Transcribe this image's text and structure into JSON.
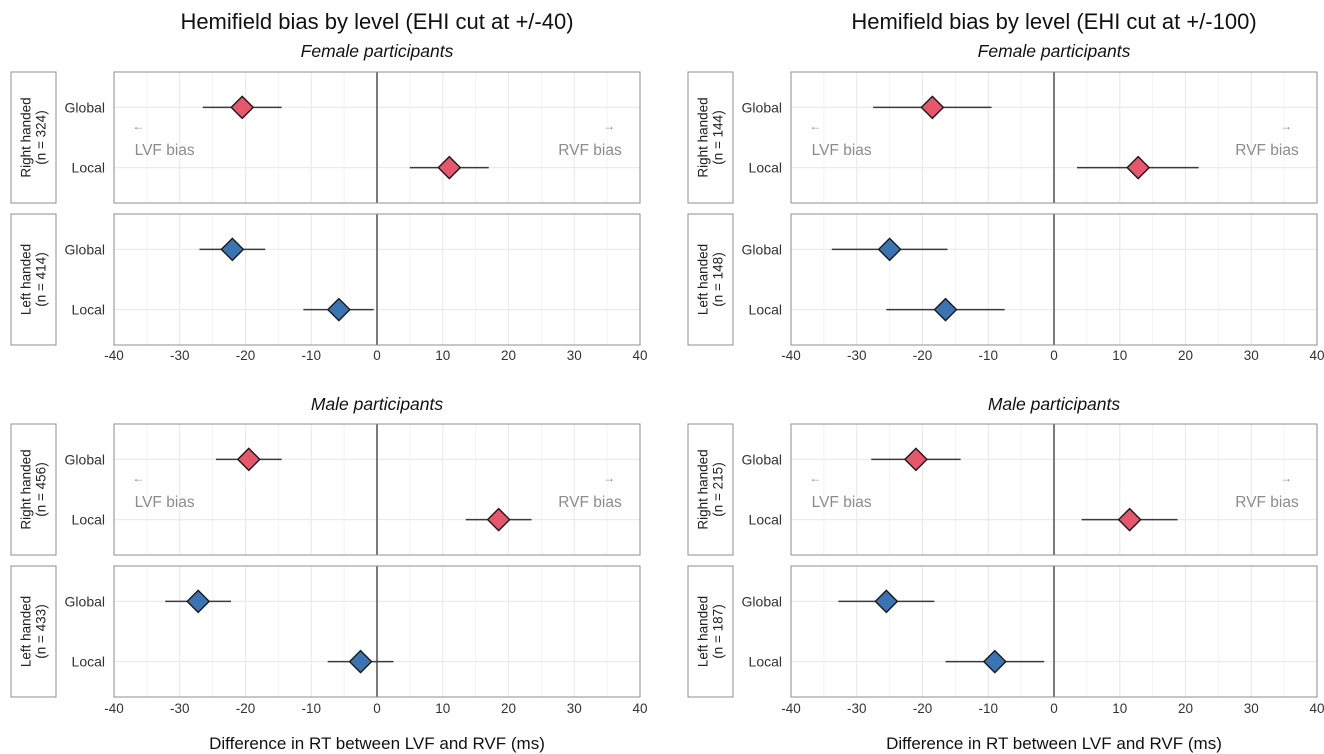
{
  "colors": {
    "right_handed": "#e8566c",
    "left_handed": "#3b74b3",
    "zero_line": "#7a7a7a",
    "grid": "#ebebeb",
    "panel_border": "#8f8f8f",
    "annotation": "#8c8c8c"
  },
  "chart_data": [
    {
      "type": "forest",
      "title": "Hemifield bias by level (EHI cut at +/-40)",
      "xlabel": "Difference in RT between LVF and RVF (ms)",
      "xlim": [
        -40,
        40
      ],
      "xticks": [
        -40,
        -30,
        -20,
        -10,
        0,
        10,
        20,
        30,
        40
      ],
      "categories": [
        "Global",
        "Local"
      ],
      "annotations": {
        "left": "LVF bias",
        "right": "RVF bias",
        "left_arrow": "←",
        "right_arrow": "→"
      },
      "groups": [
        {
          "title": "Female participants",
          "rows": [
            {
              "line1": "Right handed",
              "line2": "(n = 324)",
              "handedness": "right",
              "points": [
                {
                  "level": "Global",
                  "est": -20.5,
                  "lo": -26.5,
                  "hi": -14.5
                },
                {
                  "level": "Local",
                  "est": 11,
                  "lo": 5,
                  "hi": 17
                }
              ]
            },
            {
              "line1": "Left handed",
              "line2": "(n = 414)",
              "handedness": "left",
              "points": [
                {
                  "level": "Global",
                  "est": -22,
                  "lo": -27,
                  "hi": -17
                },
                {
                  "level": "Local",
                  "est": -5.8,
                  "lo": -11.2,
                  "hi": -0.5
                }
              ]
            }
          ]
        },
        {
          "title": "Male participants",
          "rows": [
            {
              "line1": "Right handed",
              "line2": "(n = 456)",
              "handedness": "right",
              "points": [
                {
                  "level": "Global",
                  "est": -19.5,
                  "lo": -24.5,
                  "hi": -14.5
                },
                {
                  "level": "Local",
                  "est": 18.5,
                  "lo": 13.5,
                  "hi": 23.5
                }
              ]
            },
            {
              "line1": "Left handed",
              "line2": "(n = 433)",
              "handedness": "left",
              "points": [
                {
                  "level": "Global",
                  "est": -27.2,
                  "lo": -32.2,
                  "hi": -22.2
                },
                {
                  "level": "Local",
                  "est": -2.5,
                  "lo": -7.5,
                  "hi": 2.5
                }
              ]
            }
          ]
        }
      ]
    },
    {
      "type": "forest",
      "title": "Hemifield bias by level (EHI cut at +/-100)",
      "xlabel": "Difference in RT between LVF and RVF (ms)",
      "xlim": [
        -40,
        40
      ],
      "xticks": [
        -40,
        -30,
        -20,
        -10,
        0,
        10,
        20,
        30,
        40
      ],
      "categories": [
        "Global",
        "Local"
      ],
      "annotations": {
        "left": "LVF bias",
        "right": "RVF bias",
        "left_arrow": "←",
        "right_arrow": "→"
      },
      "groups": [
        {
          "title": "Female participants",
          "rows": [
            {
              "line1": "Right handed",
              "line2": "(n = 144)",
              "handedness": "right",
              "points": [
                {
                  "level": "Global",
                  "est": -18.5,
                  "lo": -27.5,
                  "hi": -9.5
                },
                {
                  "level": "Local",
                  "est": 12.8,
                  "lo": 3.5,
                  "hi": 22
                }
              ]
            },
            {
              "line1": "Left handed",
              "line2": "(n = 148)",
              "handedness": "left",
              "points": [
                {
                  "level": "Global",
                  "est": -25,
                  "lo": -33.8,
                  "hi": -16.2
                },
                {
                  "level": "Local",
                  "est": -16.5,
                  "lo": -25.5,
                  "hi": -7.5
                }
              ]
            }
          ]
        },
        {
          "title": "Male participants",
          "rows": [
            {
              "line1": "Right handed",
              "line2": "(n = 215)",
              "handedness": "right",
              "points": [
                {
                  "level": "Global",
                  "est": -21,
                  "lo": -27.8,
                  "hi": -14.2
                },
                {
                  "level": "Local",
                  "est": 11.5,
                  "lo": 4.2,
                  "hi": 18.8
                }
              ]
            },
            {
              "line1": "Left handed",
              "line2": "(n = 187)",
              "handedness": "left",
              "points": [
                {
                  "level": "Global",
                  "est": -25.5,
                  "lo": -32.8,
                  "hi": -18.2
                },
                {
                  "level": "Local",
                  "est": -9,
                  "lo": -16.5,
                  "hi": -1.5
                }
              ]
            }
          ]
        }
      ]
    }
  ]
}
